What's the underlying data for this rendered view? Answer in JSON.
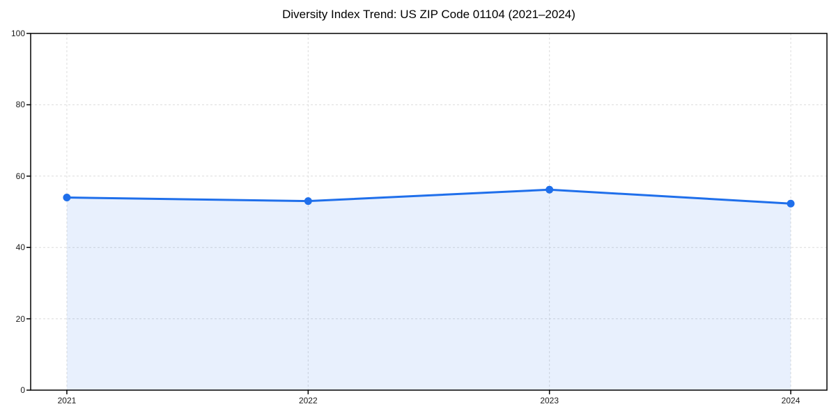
{
  "chart_data": {
    "type": "line",
    "title": "Diversity Index Trend: US ZIP Code 01104 (2021–2024)",
    "xlabel": "",
    "ylabel": "",
    "x": [
      2021,
      2022,
      2023,
      2024
    ],
    "x_tick_labels": [
      "2021",
      "2022",
      "2023",
      "2024"
    ],
    "series": [
      {
        "name": "Diversity Index",
        "values": [
          54,
          53,
          56.2,
          52.3
        ]
      }
    ],
    "ylim": [
      0,
      100
    ],
    "yticks": [
      0,
      20,
      40,
      60,
      80,
      100
    ],
    "xlim": [
      2020.85,
      2024.15
    ],
    "grid": "dashed",
    "legend": "none",
    "area_fill": true,
    "line_color": "#1f6feb",
    "marker_color": "#1f6feb",
    "fill_color": "#1f6feb",
    "fill_opacity": 0.1,
    "grid_color": "#dcdcdc",
    "axis_color": "#000000",
    "text_color": "#1a1a1a"
  }
}
